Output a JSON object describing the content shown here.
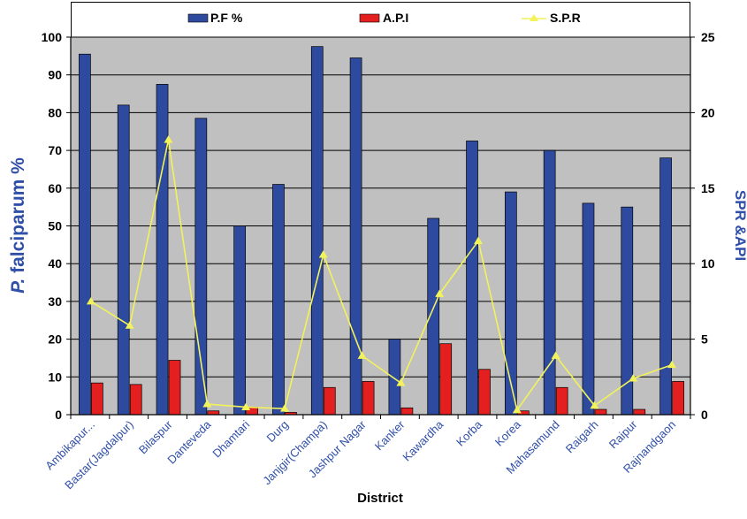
{
  "chart_data": {
    "type": "bar",
    "xlabel": "District",
    "ylabel_left_prefix": "P.",
    "ylabel_left_rest": " falciparum %",
    "ylabel_right": "SPR &API",
    "ylim_left": [
      0,
      100
    ],
    "ylim_right": [
      0,
      25
    ],
    "left_ticks": [
      "0",
      "10",
      "20",
      "30",
      "40",
      "50",
      "60",
      "70",
      "80",
      "90",
      "100"
    ],
    "right_ticks": [
      "0",
      "5",
      "10",
      "15",
      "20",
      "25"
    ],
    "legend_position": "top",
    "grid": true,
    "categories": [
      "Ambikapur...",
      "Bastar(Jagdalpur)",
      "Bilaspur",
      "Danteveda",
      "Dhamtari",
      "Durg",
      "Janjgir(Champa)",
      "Jashpur Nagar",
      "Kanker",
      "Kawardha",
      "Korba",
      "Korea",
      "Mahasamund",
      "Raigarh",
      "Raipur",
      "Rajnandgaon"
    ],
    "series": [
      {
        "name": "P.F %",
        "kind": "bar",
        "axis": "left",
        "color": "#2e4a9e",
        "values": [
          95.5,
          82,
          87.5,
          78.5,
          50,
          61,
          97.5,
          94.5,
          20,
          52,
          72.5,
          59,
          70,
          56,
          55,
          68
        ]
      },
      {
        "name": "A.P.I",
        "kind": "bar",
        "axis": "right",
        "color": "#e41f1f",
        "values": [
          2.1,
          2.0,
          3.6,
          0.25,
          0.5,
          0.15,
          1.8,
          2.2,
          0.45,
          4.7,
          3.0,
          0.25,
          1.8,
          0.35,
          0.35,
          2.2
        ]
      },
      {
        "name": "S.P.R",
        "kind": "line",
        "axis": "right",
        "color": "#f2f25a",
        "values": [
          7.5,
          5.9,
          18.2,
          0.7,
          0.5,
          0.4,
          10.6,
          3.9,
          2.1,
          8.0,
          11.5,
          0.3,
          3.9,
          0.6,
          2.4,
          3.3
        ]
      }
    ]
  }
}
